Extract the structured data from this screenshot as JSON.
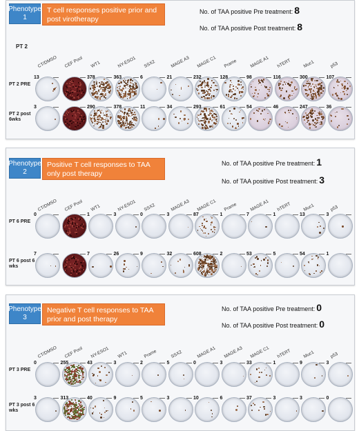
{
  "panels": [
    {
      "phenotype_label": "Phenotype 1",
      "title": "T cell responses positive prior and post virotherapy",
      "pre_label": "No. of TAA positive Pre treatment:",
      "pre_value": "8",
      "post_label": "No. of TAA positive Post treatment:",
      "post_value": "8",
      "patient": "PT 2",
      "columns": [
        "CT/DMSO",
        "CEF Pool",
        "WT1",
        "NY-ESO1",
        "SSX2",
        "MAGE A3",
        "MAGE C1",
        "Prame",
        "MAGE A1",
        "hTERT",
        "Muc1",
        "p53"
      ],
      "rows": [
        {
          "label": "PT 2 PRE",
          "counts": [
            "13",
            "",
            "378",
            "363",
            "6",
            "21",
            "232",
            "128",
            "98",
            "116",
            "300",
            "107"
          ]
        },
        {
          "label": "PT 2 post 6wks",
          "counts": [
            "3",
            "",
            "290",
            "378",
            "11",
            "34",
            "293",
            "61",
            "54",
            "46",
            "247",
            "36"
          ]
        }
      ]
    },
    {
      "phenotype_label": "Phenotype 2",
      "title": "Positive T cell responses to TAA only post therapy",
      "pre_label": "No. of TAA positive Pre treatment:",
      "pre_value": "1",
      "post_label": "No. of TAA positive Post treatment:",
      "post_value": "3",
      "patient": "",
      "columns": [
        "CT/DMSO",
        "CEF Pool",
        "WT1",
        "NY-ESO1",
        "SSX2",
        "MAGE A3",
        "MAGE C1",
        "Prame",
        "MAGE A1",
        "hTERT",
        "Muc1",
        "p53"
      ],
      "rows": [
        {
          "label": "PT 6 PRE",
          "counts": [
            "0",
            "",
            "1",
            "3",
            "0",
            "3",
            "87",
            "1",
            "7",
            "1",
            "13",
            "3"
          ]
        },
        {
          "label": "PT 6 post 6 wks",
          "counts": [
            "7",
            "",
            "7",
            "26",
            "9",
            "32",
            "608",
            "2",
            "53",
            "5",
            "54",
            "1"
          ]
        }
      ]
    },
    {
      "phenotype_label": "Phenotype 3",
      "title": "Negative T cell responses to TAA prior and post therapy",
      "pre_label": "No. of TAA positive Pre treatment:",
      "pre_value": "0",
      "post_label": "No. of TAA positive Post treatment:",
      "post_value": "0",
      "patient": "",
      "columns": [
        "CT/DMSO",
        "CEF Pool",
        "NY-ESO1",
        "WT1",
        "Prame",
        "SSX2",
        "MAGE A1",
        "MAGE A3",
        "MAGE C1",
        "hTERT",
        "Muc1",
        "p53"
      ],
      "rows": [
        {
          "label": "PT 3 PRE",
          "counts": [
            "0",
            "255",
            "43",
            "3",
            "2",
            "5",
            "0",
            "3",
            "33",
            "1",
            "9",
            "3"
          ]
        },
        {
          "label": "PT 3 post 6 wks",
          "counts": [
            "3",
            "313",
            "40",
            "9",
            "5",
            "3",
            "10",
            "6",
            "37",
            "3",
            "3",
            "0"
          ]
        }
      ]
    }
  ],
  "colors": {
    "badge": "#3e86c8",
    "title_bg": "#f0823a",
    "cef_well": "#5a1618",
    "spot": "#7a4a2a"
  }
}
